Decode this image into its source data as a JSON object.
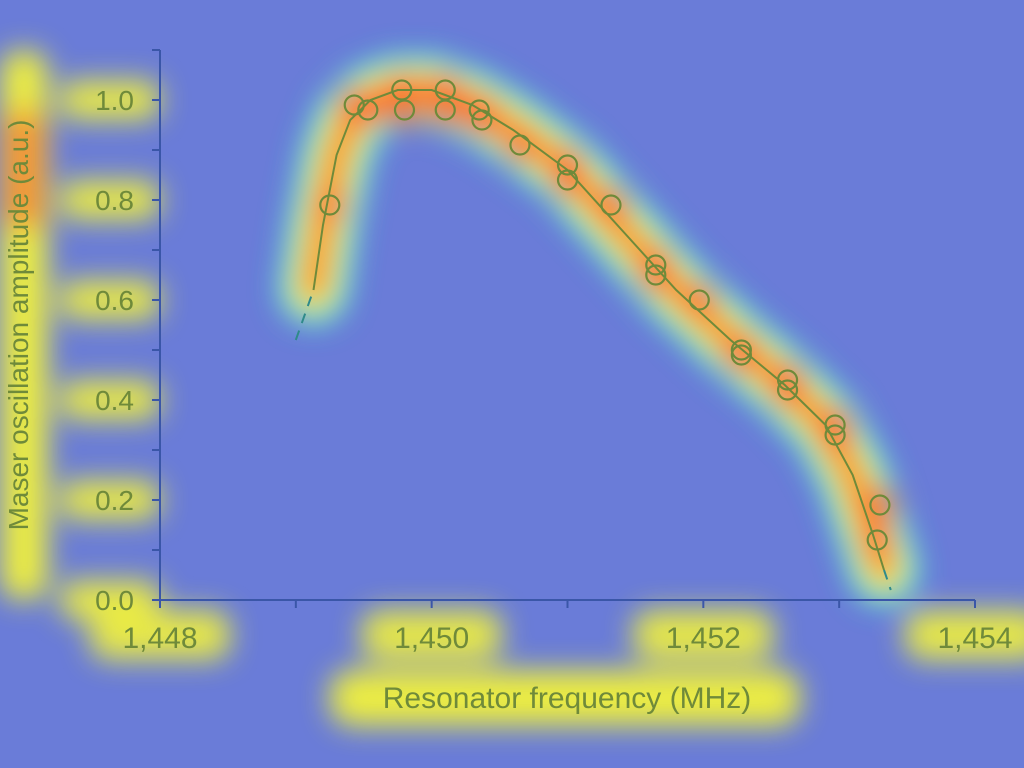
{
  "colors": {
    "background": "#6a7cd8",
    "heat_low": "#3ef0d0",
    "heat_mid": "#f2f23a",
    "heat_high": "#ff5a1f",
    "ink": "#6f8a3a",
    "axis": "#3a56a8"
  },
  "chart_data": {
    "type": "scatter",
    "title": "",
    "xlabel": "Resonator frequency (MHz)",
    "ylabel": "Maser oscillation amplitude (a.u.)",
    "xlim": [
      1448,
      1454
    ],
    "ylim": [
      0,
      1.1
    ],
    "x_ticks": [
      1448,
      1450,
      1452,
      1454
    ],
    "x_tick_labels": [
      "1,448",
      "1,450",
      "1,452",
      "1,454"
    ],
    "y_ticks": [
      0,
      0.2,
      0.4,
      0.6,
      0.8,
      1.0
    ],
    "y_tick_labels": [
      "0.0",
      "0.2",
      "0.4",
      "0.6",
      "0.8",
      "1.0"
    ],
    "grid": false,
    "overlay": "attention heatmap",
    "series": [
      {
        "kind": "points",
        "x": [
          1449.25,
          1449.43,
          1449.53,
          1449.78,
          1449.8,
          1450.1,
          1450.1,
          1450.35,
          1450.37,
          1450.65,
          1451.0,
          1451.0,
          1451.32,
          1451.65,
          1451.65,
          1451.97,
          1452.28,
          1452.28,
          1452.62,
          1452.62,
          1452.97,
          1452.97,
          1453.3,
          1453.28
        ],
        "y": [
          0.79,
          0.99,
          0.98,
          1.02,
          0.98,
          1.02,
          0.98,
          0.98,
          0.96,
          0.91,
          0.87,
          0.84,
          0.79,
          0.67,
          0.65,
          0.6,
          0.5,
          0.49,
          0.44,
          0.42,
          0.35,
          0.33,
          0.19,
          0.12
        ]
      },
      {
        "kind": "fit-line",
        "x": [
          1449.13,
          1449.2,
          1449.3,
          1449.4,
          1449.55,
          1449.75,
          1450.0,
          1450.3,
          1450.6,
          1451.0,
          1451.4,
          1451.8,
          1452.2,
          1452.6,
          1452.9,
          1453.1,
          1453.25,
          1453.33
        ],
        "y": [
          0.62,
          0.75,
          0.89,
          0.96,
          1.0,
          1.02,
          1.02,
          0.99,
          0.94,
          0.86,
          0.74,
          0.62,
          0.52,
          0.43,
          0.35,
          0.25,
          0.13,
          0.06
        ]
      },
      {
        "kind": "extrapolation-dashed",
        "segments": [
          {
            "x": [
              1449.0,
              1449.13
            ],
            "y": [
              0.52,
              0.62
            ]
          },
          {
            "x": [
              1453.33,
              1453.38
            ],
            "y": [
              0.06,
              0.02
            ]
          }
        ]
      }
    ]
  }
}
